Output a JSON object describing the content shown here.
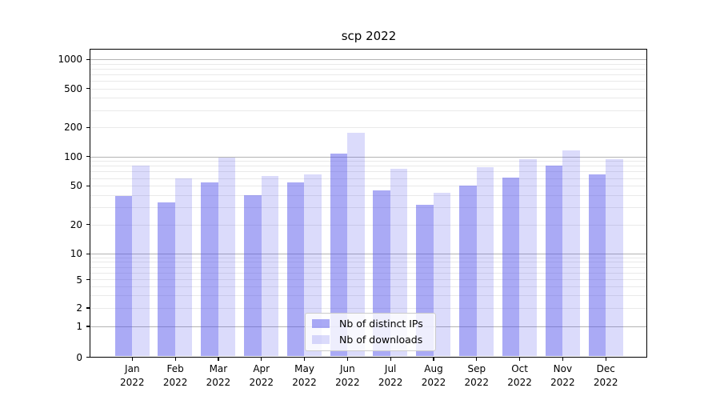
{
  "title": "scp 2022",
  "year": "2022",
  "colors": {
    "bar_base": "#5656eb",
    "bar_dark": "rgba(86,86,235,0.5)",
    "bar_light": "rgba(86,86,235,0.21)",
    "grid_major": "#b3b3b3",
    "grid_minor": "#e9e9e9",
    "spine": "#000000",
    "text": "#000000",
    "legend_border": "#cccccc"
  },
  "chart_data": {
    "type": "bar",
    "title": "scp 2022",
    "categories": [
      "Jan 2022",
      "Feb 2022",
      "Mar 2022",
      "Apr 2022",
      "May 2022",
      "Jun 2022",
      "Jul 2022",
      "Aug 2022",
      "Sep 2022",
      "Oct 2022",
      "Nov 2022",
      "Dec 2022"
    ],
    "months": [
      "Jan",
      "Feb",
      "Mar",
      "Apr",
      "May",
      "Jun",
      "Jul",
      "Aug",
      "Sep",
      "Oct",
      "Nov",
      "Dec"
    ],
    "series": [
      {
        "name": "Nb of distinct IPs",
        "key": "distinct-ips",
        "values": [
          39,
          34,
          54,
          40,
          54,
          108,
          45,
          32,
          50,
          61,
          80,
          65
        ]
      },
      {
        "name": "Nb of downloads",
        "key": "downloads",
        "values": [
          80,
          60,
          98,
          63,
          65,
          174,
          74,
          42,
          77,
          94,
          115,
          94
        ]
      }
    ],
    "xlabel": "",
    "ylabel": "",
    "yscale": "symlog",
    "y_ticks": [
      0,
      1,
      2,
      5,
      10,
      20,
      50,
      100,
      200,
      500,
      1000
    ],
    "y_minor_gridlines": [
      2,
      3,
      4,
      5,
      6,
      7,
      8,
      9,
      20,
      30,
      40,
      50,
      60,
      70,
      80,
      90,
      200,
      300,
      400,
      500,
      600,
      700,
      800,
      900
    ],
    "y_major_gridlines": [
      1,
      10,
      100,
      1000
    ],
    "ylim": [
      0,
      1400
    ],
    "grid": true,
    "legend_position": "lower center"
  }
}
